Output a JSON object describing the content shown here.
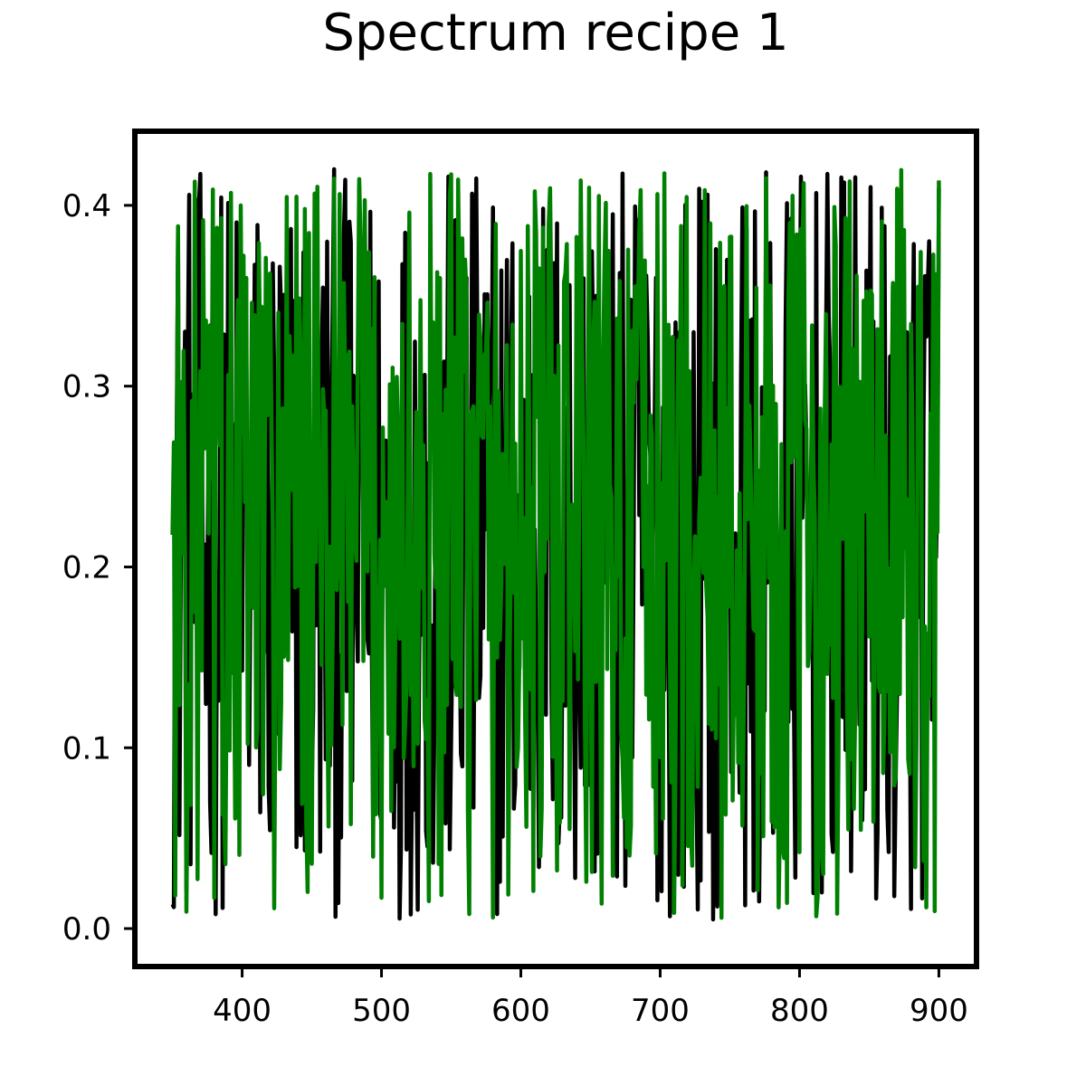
{
  "chart_data": {
    "type": "line",
    "title": "Spectrum recipe 1",
    "xlabel": "",
    "ylabel": "",
    "xlim": [
      323,
      927
    ],
    "ylim": [
      -0.021,
      0.441
    ],
    "x_ticks": [
      400,
      500,
      600,
      700,
      800,
      900
    ],
    "x_tick_labels": [
      "400",
      "500",
      "600",
      "700",
      "800",
      "900"
    ],
    "y_ticks": [
      0.0,
      0.1,
      0.2,
      0.3,
      0.4
    ],
    "y_tick_labels": [
      "0.0",
      "0.1",
      "0.2",
      "0.3",
      "0.4"
    ],
    "grid": false,
    "legend": "none",
    "x_range": [
      350,
      900
    ],
    "series": [
      {
        "color": "#000000",
        "note_values": "dense noise-like spectrum, 551 points at 1-unit spacing, values between about 0.0 and 0.42"
      },
      {
        "color": "#008000",
        "note_values": "dense noise-like spectrum, 551 points at 1-unit spacing, values between about 0.0 and 0.42, drawn on top"
      }
    ]
  }
}
